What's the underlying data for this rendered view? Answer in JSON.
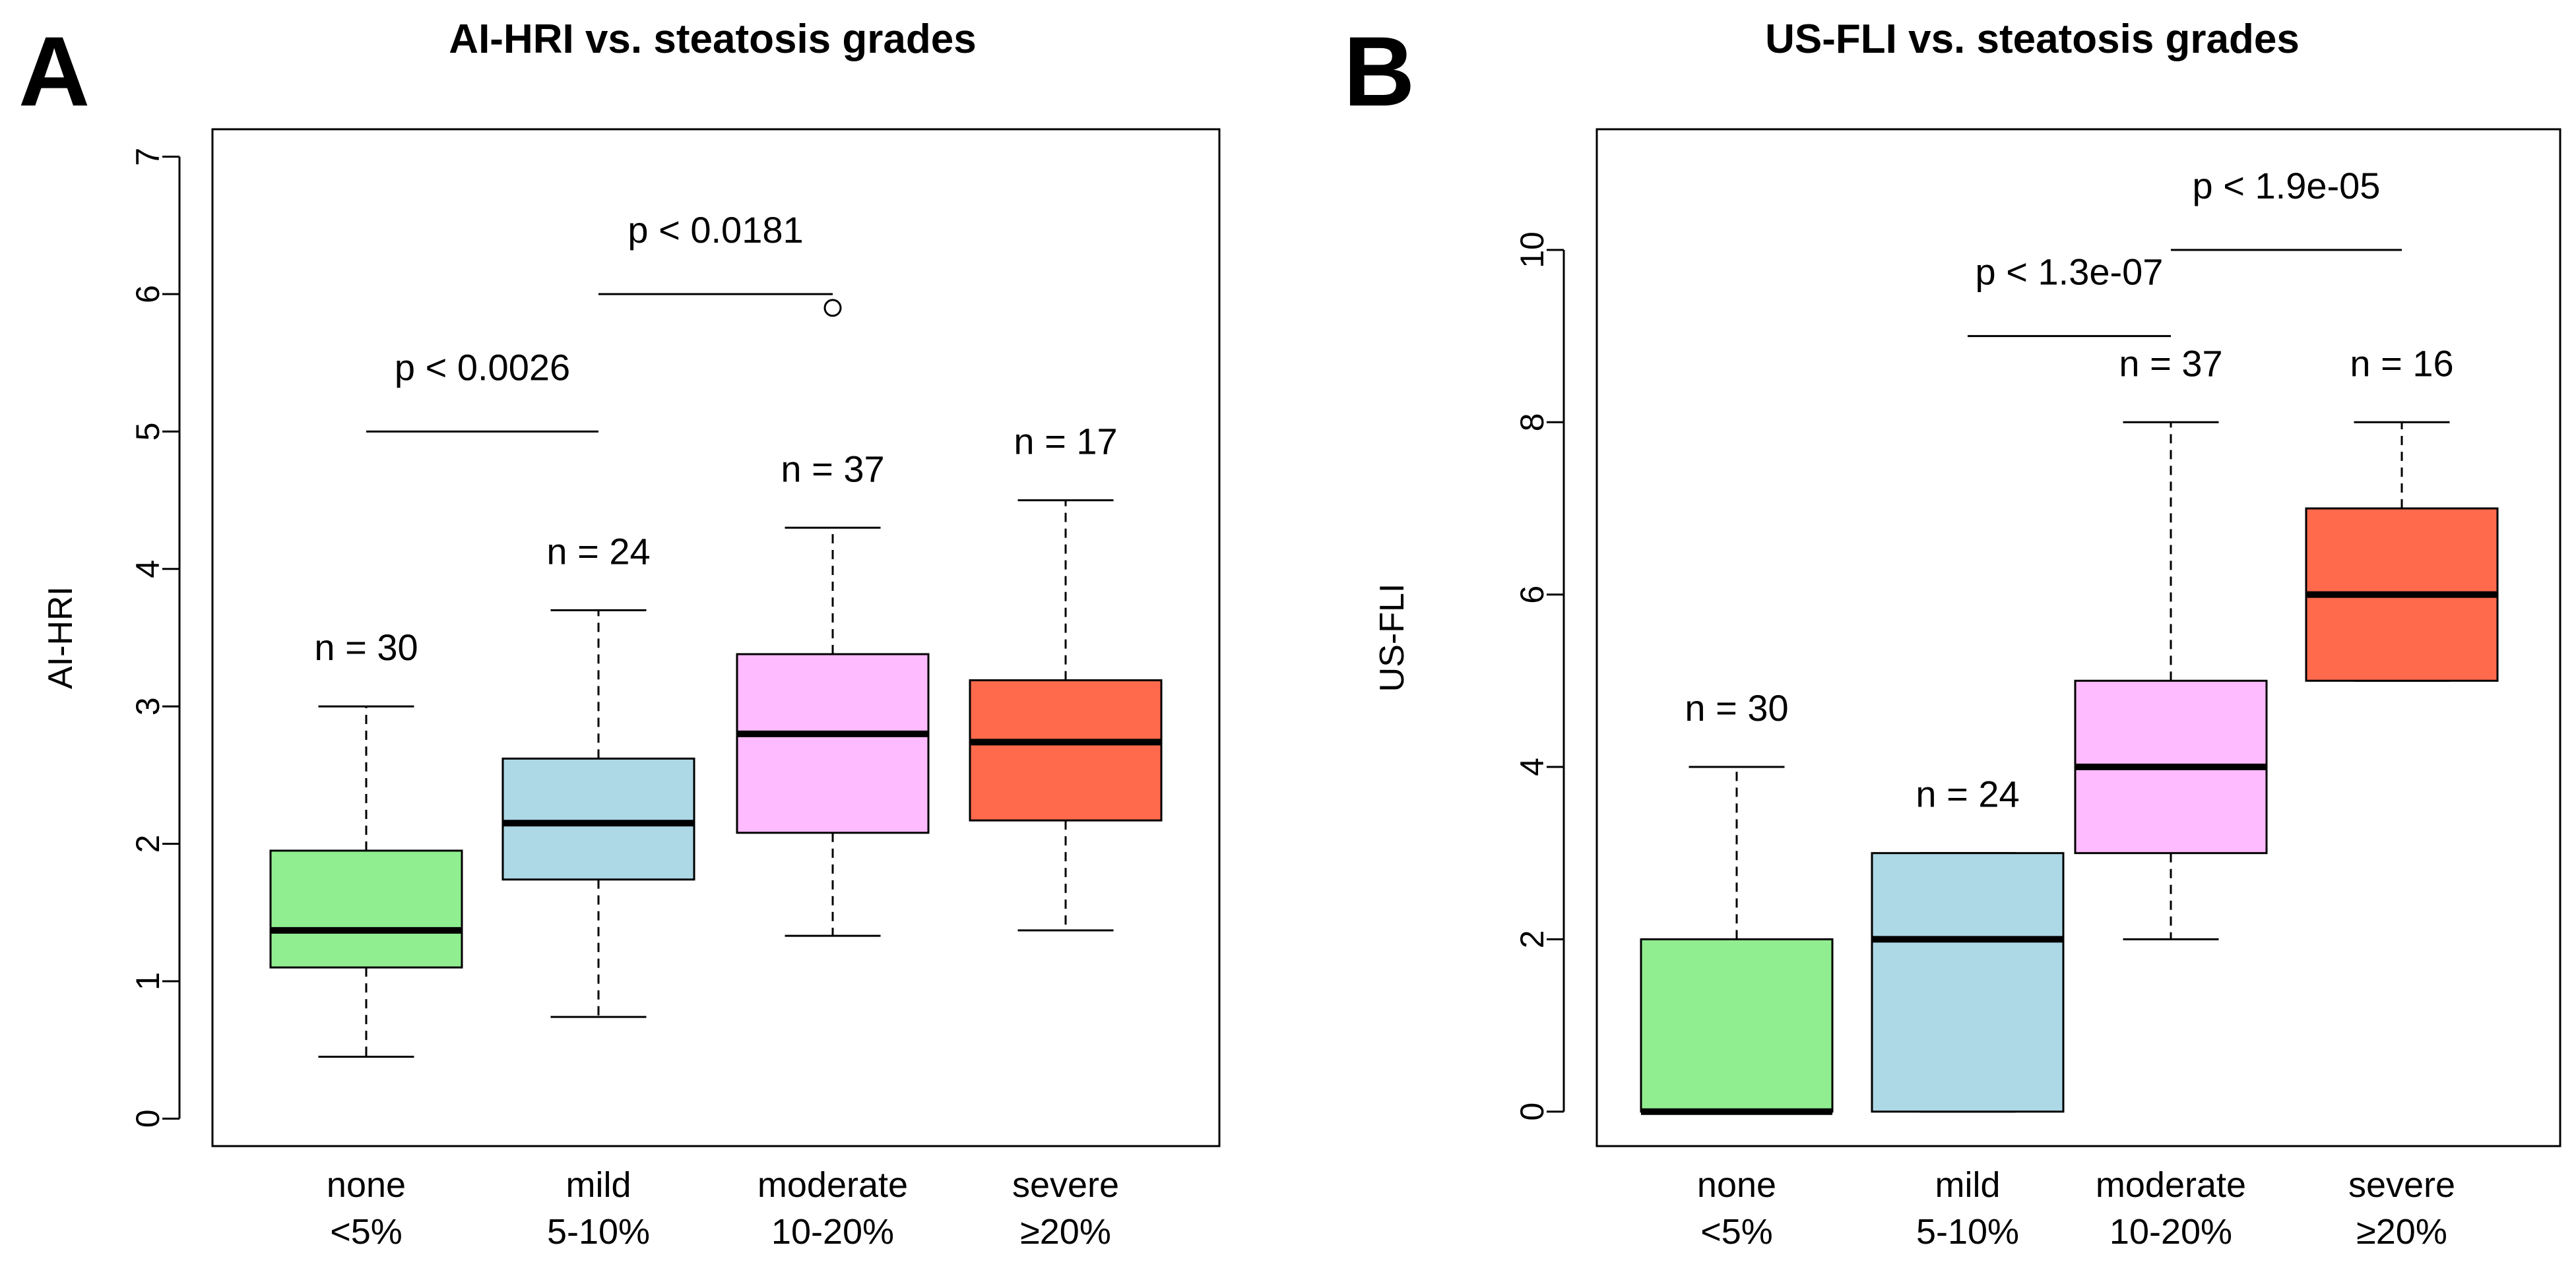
{
  "chart_data": [
    {
      "panel_label": "A",
      "type": "box",
      "title": "AI-HRI vs. steatosis grades",
      "ylabel": "AI-HRI",
      "xlabel": "",
      "ylim": [
        -0.2,
        7.2
      ],
      "yticks": [
        0,
        1,
        2,
        3,
        4,
        5,
        6,
        7
      ],
      "ytick_labels": [
        "0",
        "1",
        "2",
        "3",
        "4",
        "5",
        "6",
        "7"
      ],
      "categories": [
        {
          "line1": "none",
          "line2": "<5%"
        },
        {
          "line1": "mild",
          "line2": "5-10%"
        },
        {
          "line1": "moderate",
          "line2": "10-20%"
        },
        {
          "line1": "severe",
          "line2": "≥20%"
        }
      ],
      "boxes": [
        {
          "whisker_low": 0.45,
          "q1": 1.1,
          "median": 1.37,
          "q3": 1.95,
          "whisker_high": 3.0,
          "outliers": [],
          "n_label": "n = 30",
          "color": "#90EE90"
        },
        {
          "whisker_low": 0.74,
          "q1": 1.74,
          "median": 2.15,
          "q3": 2.62,
          "whisker_high": 3.7,
          "outliers": [],
          "n_label": "n = 24",
          "color": "#ADD8E6"
        },
        {
          "whisker_low": 1.33,
          "q1": 2.08,
          "median": 2.8,
          "q3": 3.38,
          "whisker_high": 4.3,
          "outliers": [
            5.9
          ],
          "n_label": "n = 37",
          "color": "#FFBBFF"
        },
        {
          "whisker_low": 1.37,
          "q1": 2.17,
          "median": 2.74,
          "q3": 3.19,
          "whisker_high": 4.5,
          "outliers": [],
          "n_label": "n = 17",
          "color": "#FF6A4D"
        }
      ],
      "comparisons": [
        {
          "from": 0,
          "to": 1,
          "y": 5.0,
          "label": "p < 0.0026"
        },
        {
          "from": 1,
          "to": 2,
          "y": 6.0,
          "label": "p < 0.0181"
        }
      ]
    },
    {
      "panel_label": "B",
      "type": "box",
      "title": "US-FLI vs. steatosis grades",
      "ylabel": "US-FLI",
      "xlabel": "",
      "ylim": [
        -0.4,
        11.4
      ],
      "yticks": [
        0,
        2,
        4,
        6,
        8,
        10
      ],
      "ytick_labels": [
        "0",
        "2",
        "4",
        "6",
        "8",
        "10"
      ],
      "categories": [
        {
          "line1": "none",
          "line2": "<5%"
        },
        {
          "line1": "mild",
          "line2": "5-10%"
        },
        {
          "line1": "moderate",
          "line2": "10-20%"
        },
        {
          "line1": "severe",
          "line2": "≥20%"
        }
      ],
      "boxes": [
        {
          "whisker_low": 0,
          "q1": 0,
          "median": 0,
          "q3": 2,
          "whisker_high": 4,
          "outliers": [],
          "n_label": "n = 30",
          "color": "#90EE90"
        },
        {
          "whisker_low": 0,
          "q1": 0,
          "median": 2,
          "q3": 3,
          "whisker_high": 3,
          "outliers": [],
          "n_label": "n = 24",
          "color": "#ADD8E6"
        },
        {
          "whisker_low": 2,
          "q1": 3,
          "median": 4,
          "q3": 5,
          "whisker_high": 8,
          "outliers": [],
          "n_label": "n = 37",
          "color": "#FFBBFF"
        },
        {
          "whisker_low": 5,
          "q1": 5,
          "median": 6,
          "q3": 7,
          "whisker_high": 8,
          "outliers": [],
          "n_label": "n = 16",
          "color": "#FF6A4D"
        }
      ],
      "comparisons": [
        {
          "from": 1,
          "to": 2,
          "y": 9.0,
          "label": "p < 1.3e-07"
        },
        {
          "from": 2,
          "to": 3,
          "y": 10.0,
          "label": "p < 1.9e-05"
        }
      ]
    }
  ]
}
